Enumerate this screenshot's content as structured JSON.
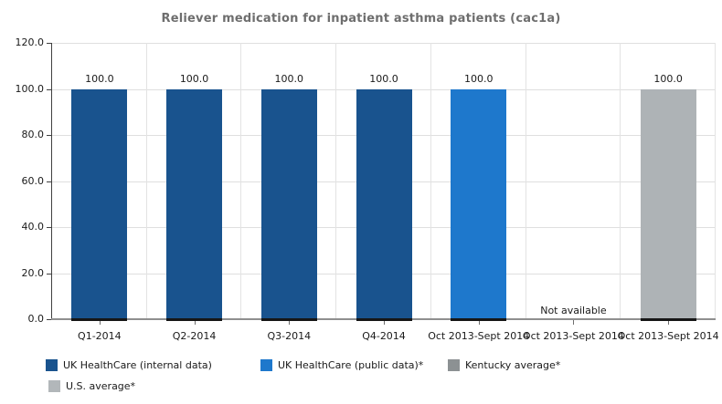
{
  "title": "Reliever medication for inpatient asthma patients (cac1a)",
  "chart_data": {
    "type": "bar",
    "title": "Reliever medication for inpatient asthma patients (cac1a)",
    "categories": [
      "Q1-2014",
      "Q2-2014",
      "Q3-2014",
      "Q4-2014",
      "Oct 2013-Sept 2014",
      "Oct 2013-Sept 2014",
      "Oct 2013-Sept 2014"
    ],
    "values": [
      100.0,
      100.0,
      100.0,
      100.0,
      100.0,
      null,
      100.0
    ],
    "bar_labels": [
      "100.0",
      "100.0",
      "100.0",
      "100.0",
      "100.0",
      "Not available",
      "100.0"
    ],
    "bar_series": [
      "UK HealthCare (internal data)",
      "UK HealthCare (internal data)",
      "UK HealthCare (internal data)",
      "UK HealthCare (internal data)",
      "UK HealthCare (public data)*",
      "Kentucky average*",
      "U.S. average*"
    ],
    "bar_colors": [
      "#19538E",
      "#19538E",
      "#19538E",
      "#19538E",
      "#1E78CC",
      null,
      "#AEB3B6"
    ],
    "ylim": [
      0,
      120
    ],
    "yticks": [
      0,
      20,
      40,
      60,
      80,
      100,
      120
    ],
    "ytick_labels": [
      "0.0",
      "20.0",
      "40.0",
      "60.0",
      "80.0",
      "100.0",
      "120.0"
    ],
    "grid": true,
    "legend_position": "bottom",
    "legend": [
      {
        "label": "UK HealthCare (internal data)",
        "color": "#19538E"
      },
      {
        "label": "UK HealthCare (public data)*",
        "color": "#1E78CC"
      },
      {
        "label": "Kentucky average*",
        "color": "#8C9193"
      },
      {
        "label": "U.S. average*",
        "color": "#B2B7BA"
      }
    ]
  },
  "colors": {
    "title_text": "#6E6E6E",
    "axis_text": "#1A1A1A",
    "gridline": "#DFDFDF",
    "axis_line": "#8F8F8F",
    "dark_blue": "#19538E",
    "light_blue": "#1E78CC",
    "gray_bar": "#AEB3B6"
  }
}
